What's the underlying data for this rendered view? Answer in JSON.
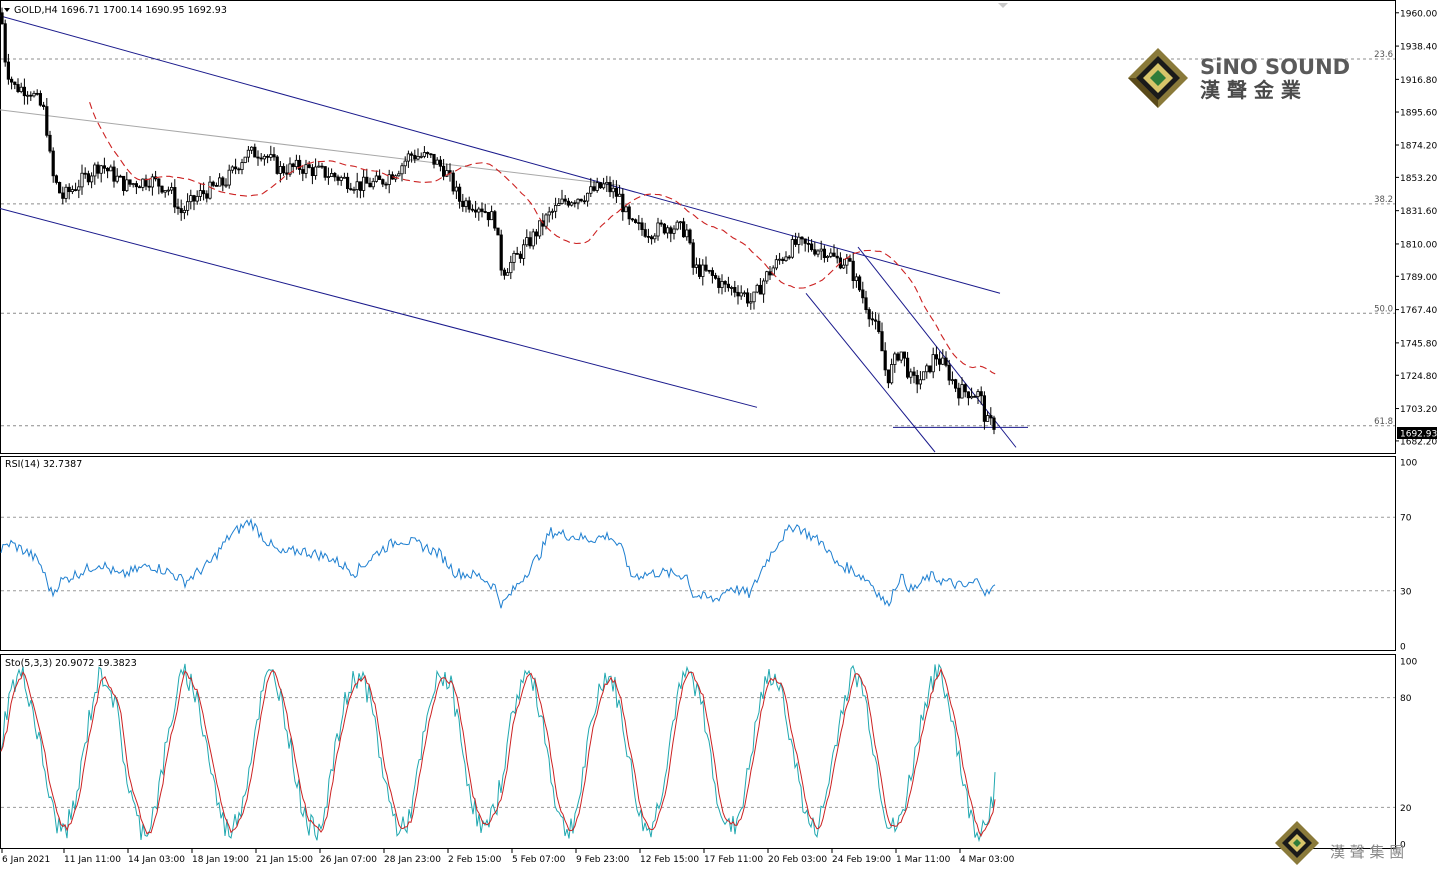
{
  "chart_data": [
    {
      "type": "candlestick",
      "panel": "price",
      "title": "GOLD,H4",
      "ohlc_header": "1696.71 1700.14 1690.95 1692.93",
      "ylim": [
        1675,
        1967
      ],
      "y_ticks": [
        "1960.00",
        "1938.40",
        "1916.80",
        "1895.60",
        "1874.20",
        "1853.20",
        "1831.60",
        "1810.00",
        "1789.00",
        "1767.40",
        "1745.80",
        "1724.80",
        "1703.20",
        "1682.20"
      ],
      "last_price": "1692.93",
      "fib_levels": [
        {
          "label": "23.6",
          "value": 1930
        },
        {
          "label": "38.2",
          "value": 1836
        },
        {
          "label": "50.0",
          "value": 1765
        },
        {
          "label": "61.8",
          "value": 1692
        }
      ],
      "ma_color": "#cc2222",
      "channel_color": "#1a1a8c",
      "bull_color": "#000000",
      "bear_color": "#000000"
    },
    {
      "type": "line",
      "panel": "rsi",
      "label": "RSI(14) 32.7387",
      "ylim": [
        0,
        100
      ],
      "y_ticks": [
        "100",
        "70",
        "30",
        "0"
      ],
      "levels": [
        70,
        30
      ],
      "color": "#1e7fd0"
    },
    {
      "type": "line",
      "panel": "stochastic",
      "label": "Sto(5,3,3) 20.9072 19.3823",
      "ylim": [
        0,
        100
      ],
      "y_ticks": [
        "100",
        "80",
        "20",
        "0"
      ],
      "levels": [
        80,
        20
      ],
      "main_color": "#20a8b0",
      "signal_color": "#cc2222"
    }
  ],
  "x_ticks": [
    "6 Jan 2021",
    "11 Jan 11:00",
    "14 Jan 03:00",
    "18 Jan 19:00",
    "21 Jan 15:00",
    "26 Jan 07:00",
    "28 Jan 23:00",
    "2 Feb 15:00",
    "5 Feb 07:00",
    "9 Feb 23:00",
    "12 Feb 15:00",
    "17 Feb 11:00",
    "20 Feb 03:00",
    "24 Feb 19:00",
    "1 Mar 11:00",
    "4 Mar 03:00"
  ],
  "logo": {
    "brand_en": "SiNO SOUND",
    "brand_cn": "漢 聲 金 業",
    "footer_cn": "漢 聲 集 團"
  }
}
